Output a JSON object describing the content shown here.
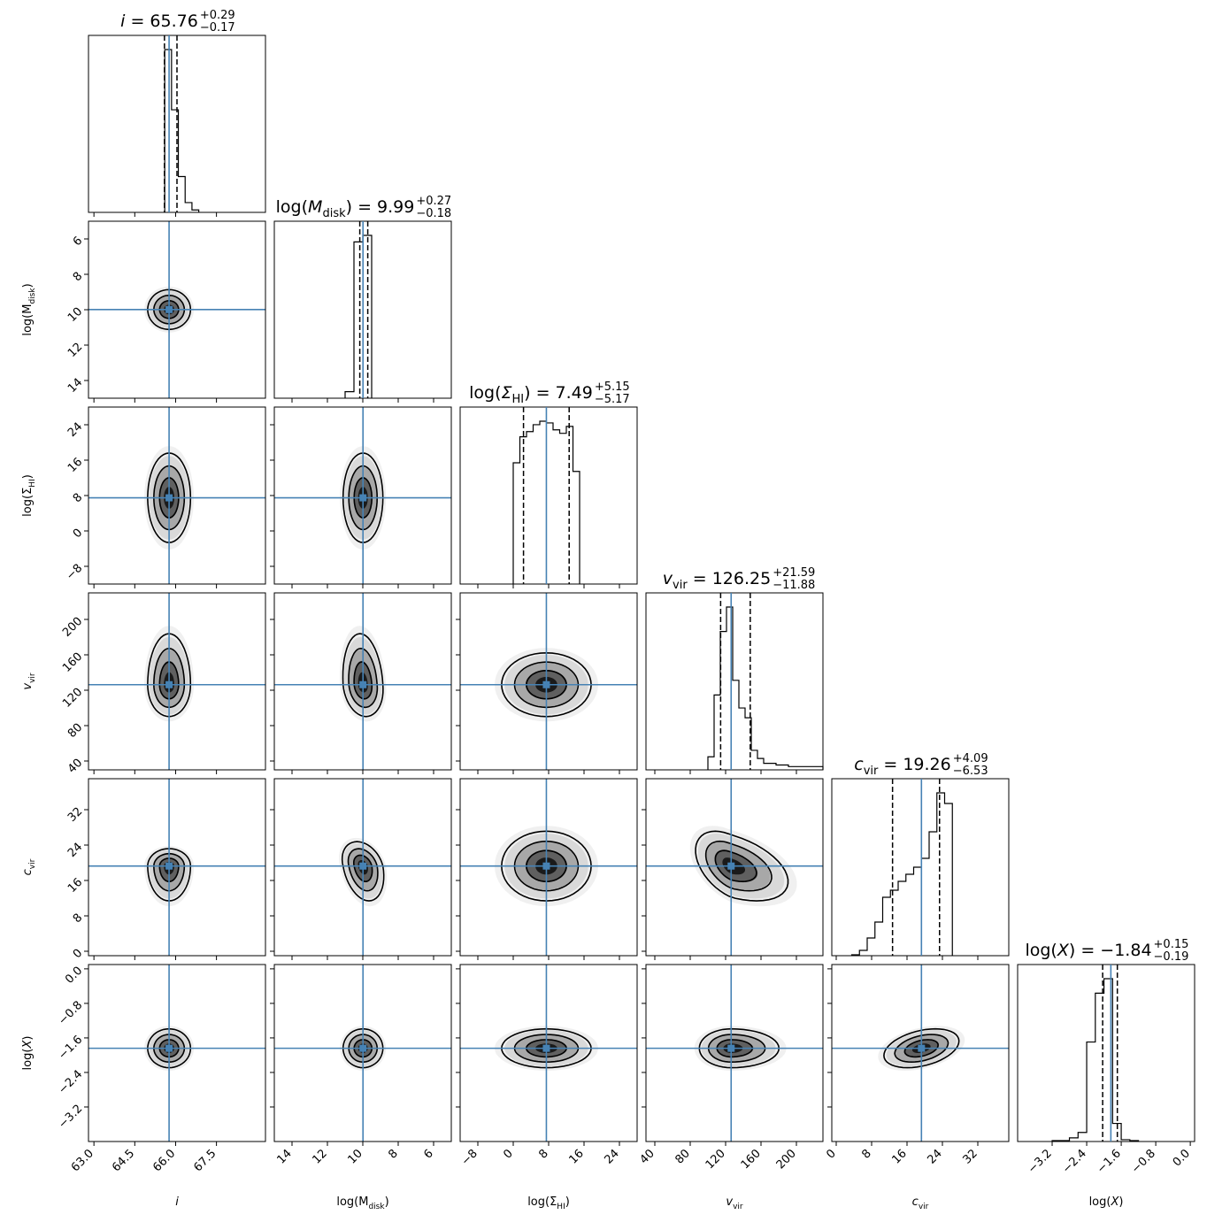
{
  "chart_data": {
    "type": "corner",
    "truth_color": "#4682b4",
    "params": [
      {
        "key": "i",
        "title": {
          "lhs": "i",
          "value": "65.76",
          "plus": "+0.29",
          "minus": "−0.17"
        },
        "label": {
          "base": "i",
          "sub": "",
          "italic": true
        },
        "range": [
          62.8,
          69.3
        ],
        "ticks": [
          63.0,
          64.5,
          66.0,
          67.5
        ],
        "tick_labels": [
          "63.0",
          "64.5",
          "66.0",
          "67.5"
        ],
        "median": 65.76,
        "q_lo": 65.59,
        "q_hi": 66.05,
        "hist_edges": [
          65.6,
          65.85,
          66.1,
          66.35,
          66.6,
          66.85
        ],
        "hist_counts": [
          1.0,
          0.63,
          0.22,
          0.06,
          0.015
        ],
        "spread": 0.35,
        "reversed": false
      },
      {
        "key": "logMdisk",
        "title": {
          "lhs": "log(M_disk)",
          "value": "9.99",
          "plus": "+0.27",
          "minus": "−0.18"
        },
        "label": {
          "base": "log(M",
          "sub": "disk",
          "close": ")",
          "italic": false
        },
        "range": [
          15.0,
          5.0
        ],
        "ticks": [
          14,
          12,
          10,
          8,
          6
        ],
        "tick_labels": [
          "14",
          "12",
          "10",
          "8",
          "6"
        ],
        "median": 9.99,
        "q_lo": 9.72,
        "q_hi": 10.17,
        "hist_edges": [
          11.0,
          10.5,
          10.0,
          9.5
        ],
        "hist_counts": [
          0.04,
          0.96,
          1.0
        ],
        "spread": 0.5,
        "reversed": true
      },
      {
        "key": "logSigmaHI",
        "title": {
          "lhs": "log(Σ_HI)",
          "value": "7.49",
          "plus": "+5.15",
          "minus": "−5.17"
        },
        "label": {
          "base": "log(Σ",
          "sub": "HI",
          "close": ")",
          "italic": false
        },
        "range": [
          -12.0,
          28.0
        ],
        "ticks": [
          -8,
          0,
          8,
          16,
          24
        ],
        "tick_labels": [
          "−8",
          "0",
          "8",
          "16",
          "24"
        ],
        "median": 7.49,
        "q_lo": 2.32,
        "q_hi": 12.64,
        "hist_edges": [
          0.0,
          1.5,
          3.0,
          4.5,
          6.0,
          7.5,
          9.0,
          10.5,
          12.0,
          13.5,
          15.0
        ],
        "hist_counts": [
          0.7,
          0.85,
          0.88,
          0.92,
          0.94,
          0.93,
          0.89,
          0.87,
          0.91,
          0.65
        ],
        "spread": 4.5,
        "reversed": false
      },
      {
        "key": "vvir",
        "title": {
          "lhs": "v_vir",
          "value": "126.25",
          "plus": "+21.59",
          "minus": "−11.88"
        },
        "label": {
          "base": "v",
          "sub": "vir",
          "italic": true
        },
        "range": [
          30.0,
          230.0
        ],
        "ticks": [
          40,
          80,
          120,
          160,
          200
        ],
        "tick_labels": [
          "40",
          "80",
          "120",
          "160",
          "200"
        ],
        "median": 126.25,
        "q_lo": 114.37,
        "q_hi": 147.84,
        "hist_edges": [
          100,
          107,
          114,
          121,
          128,
          135,
          142,
          149,
          156,
          163,
          170,
          177,
          184,
          191,
          198,
          205,
          212,
          219,
          226,
          230
        ],
        "hist_counts": [
          0.08,
          0.46,
          0.85,
          1.0,
          0.55,
          0.38,
          0.32,
          0.12,
          0.07,
          0.04,
          0.04,
          0.03,
          0.03,
          0.02,
          0.02,
          0.02,
          0.02,
          0.02,
          0.02
        ],
        "spread": 16,
        "reversed": false
      },
      {
        "key": "cvir",
        "title": {
          "lhs": "c_vir",
          "value": "19.26",
          "plus": "+4.09",
          "minus": "−6.53"
        },
        "label": {
          "base": "c",
          "sub": "vir",
          "italic": true
        },
        "range": [
          -1.0,
          39.0
        ],
        "ticks": [
          0,
          8,
          16,
          24,
          32
        ],
        "tick_labels": [
          "0",
          "8",
          "16",
          "24",
          "32"
        ],
        "median": 19.26,
        "q_lo": 12.73,
        "q_hi": 23.35,
        "hist_edges": [
          3.5,
          5.25,
          7.0,
          8.75,
          10.5,
          12.25,
          14.0,
          15.75,
          17.5,
          19.25,
          21.0,
          22.75,
          24.5,
          26.25
        ],
        "hist_counts": [
          0.005,
          0.03,
          0.1,
          0.19,
          0.33,
          0.37,
          0.42,
          0.46,
          0.5,
          0.55,
          0.7,
          0.92,
          0.86
        ],
        "spread": 3.5,
        "reversed": false
      },
      {
        "key": "logX",
        "title": {
          "lhs": "log(X)",
          "value": "−1.84",
          "plus": "+0.15",
          "minus": "−0.19"
        },
        "label": {
          "base": "log(X)",
          "sub": "",
          "italic": false
        },
        "range": [
          -4.0,
          0.1
        ],
        "ticks": [
          -3.2,
          -2.4,
          -1.6,
          -0.8,
          0.0
        ],
        "tick_labels": [
          "−3.2",
          "−2.4",
          "−1.6",
          "−0.8",
          "0.0"
        ],
        "median": -1.84,
        "q_lo": -2.03,
        "q_hi": -1.69,
        "hist_edges": [
          -3.2,
          -2.8,
          -2.6,
          -2.4,
          -2.2,
          -2.0,
          -1.8,
          -1.6,
          -1.4,
          -1.2
        ],
        "hist_counts": [
          0.005,
          0.02,
          0.05,
          0.55,
          0.82,
          0.9,
          0.1,
          0.01,
          0.005
        ],
        "spread": 0.2,
        "reversed": false
      }
    ]
  }
}
